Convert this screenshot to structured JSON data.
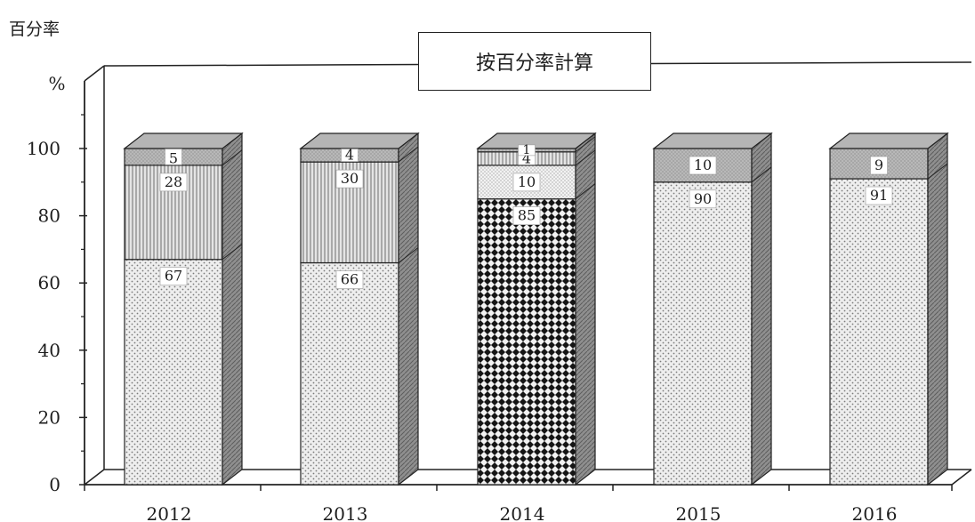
{
  "y_unit_label": "百分率",
  "y_axis_symbol": "%",
  "colors": {
    "segment_a": "#e7e7e7",
    "segment_b": "#bfbfbf",
    "segment_c": "#1e1e1e",
    "segment_d": "#d9d9d9",
    "top_segment": "#a9a9a9",
    "side_face": "#8a8a8a",
    "top_face": "#b5b5b5",
    "axis": "#222222"
  },
  "chart_data": {
    "type": "bar",
    "stacked": true,
    "three_d": true,
    "title": "按百分率計算",
    "xlabel": "",
    "ylabel": "百分率",
    "ylim": [
      0,
      100
    ],
    "y_ticks": [
      "0",
      "20",
      "40",
      "60",
      "80",
      "100"
    ],
    "categories": [
      "2012",
      "2013",
      "2014",
      "2015",
      "2016"
    ],
    "series": [
      {
        "style": "segment_a",
        "values": [
          67,
          66,
          null,
          90,
          91
        ]
      },
      {
        "style": "segment_c",
        "values": [
          null,
          null,
          85,
          null,
          null
        ]
      },
      {
        "style": "segment_d",
        "values": [
          null,
          null,
          10,
          null,
          null
        ]
      },
      {
        "style": "segment_b",
        "values": [
          28,
          30,
          4,
          null,
          null
        ]
      },
      {
        "style": "top_segment",
        "values": [
          5,
          4,
          1,
          10,
          9
        ]
      }
    ],
    "data_labels": [
      [
        "67",
        "28",
        "5"
      ],
      [
        "66",
        "30",
        "4"
      ],
      [
        "85",
        "10",
        "4",
        "1"
      ],
      [
        "90",
        "10"
      ],
      [
        "91",
        "9"
      ]
    ],
    "grid": false,
    "legend": "none"
  }
}
